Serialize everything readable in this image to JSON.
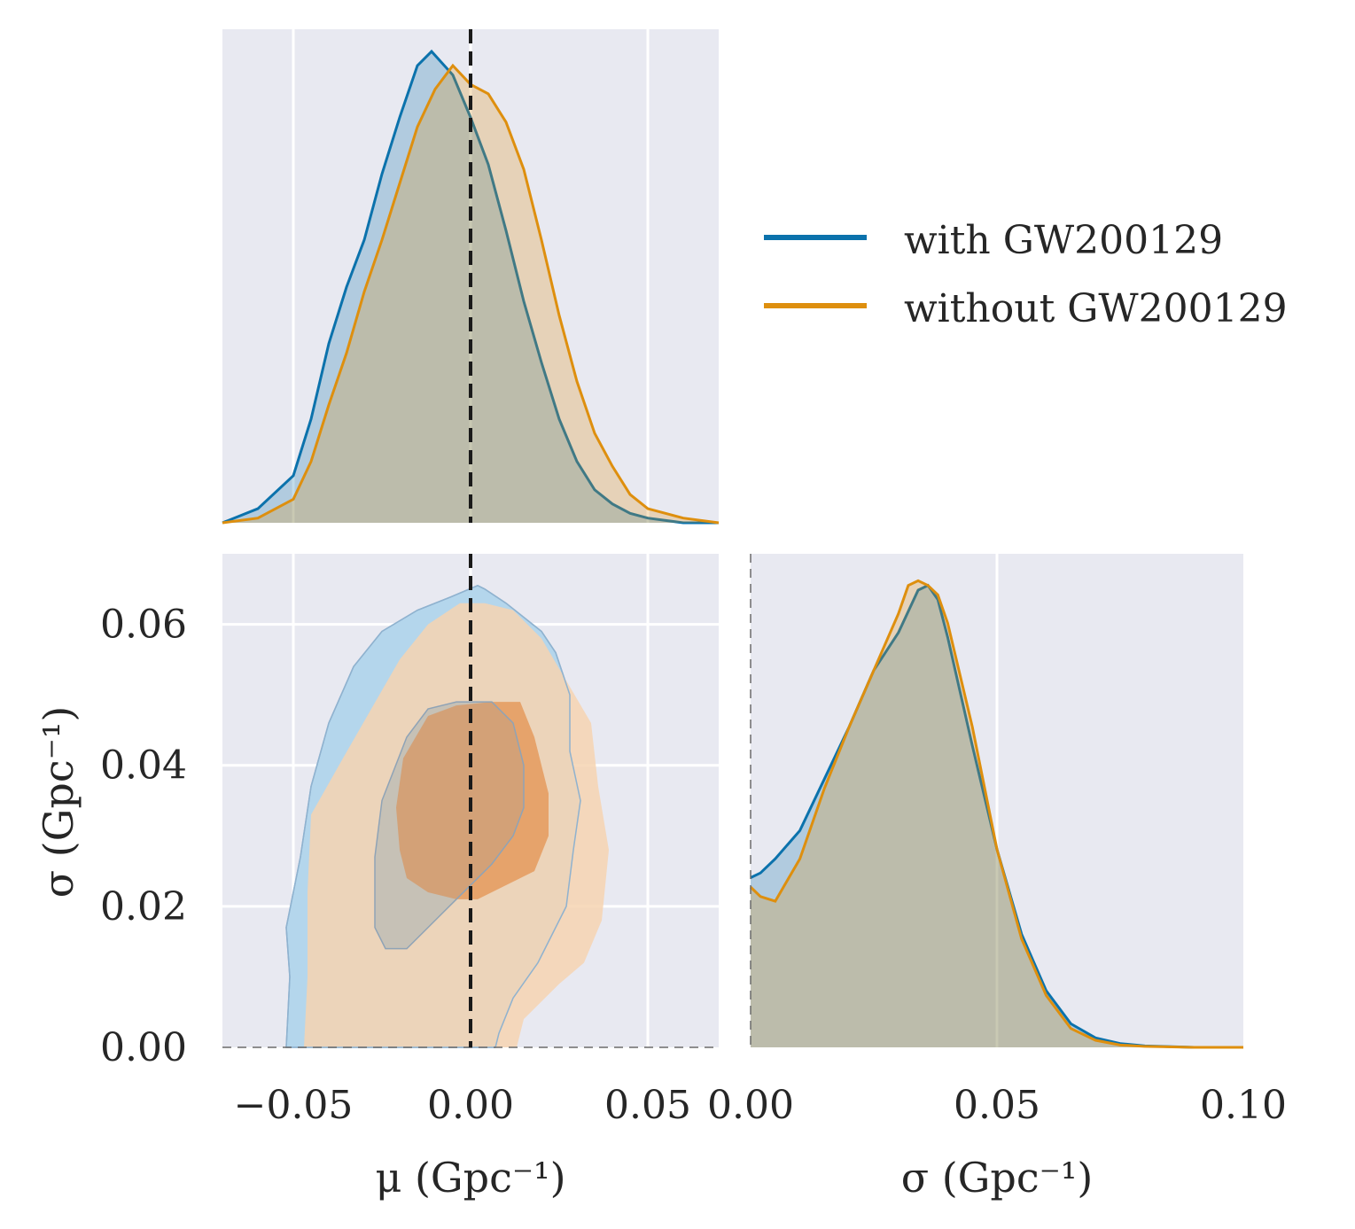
{
  "chart_data": {
    "type": "corner",
    "colors": {
      "with": "#0b72ac",
      "without": "#de8f0e",
      "reference": "#1a1a1a",
      "panel_bg": "#e8e9f1"
    },
    "series": [
      {
        "name": "with GW200129",
        "key": "with"
      },
      {
        "name": "without GW200129",
        "key": "without"
      }
    ],
    "legend": {
      "placement": "upper-right"
    },
    "reference_line": {
      "mu": 0.0,
      "style": "dashed"
    },
    "panels": {
      "mu_marginal": {
        "xlim": [
          -0.07,
          0.07
        ],
        "xticks": [
          -0.05,
          0.0,
          0.05
        ],
        "with": {
          "x": [
            -0.07,
            -0.06,
            -0.05,
            -0.045,
            -0.04,
            -0.035,
            -0.03,
            -0.025,
            -0.02,
            -0.015,
            -0.011,
            -0.005,
            0.0,
            0.005,
            0.01,
            0.015,
            0.02,
            0.025,
            0.03,
            0.035,
            0.04,
            0.045,
            0.05,
            0.06,
            0.07
          ],
          "y": [
            0.0,
            0.03,
            0.1,
            0.22,
            0.38,
            0.5,
            0.6,
            0.74,
            0.86,
            0.97,
            1.0,
            0.95,
            0.86,
            0.76,
            0.62,
            0.47,
            0.34,
            0.22,
            0.13,
            0.07,
            0.04,
            0.02,
            0.01,
            0.0,
            0.0
          ]
        },
        "without": {
          "x": [
            -0.07,
            -0.06,
            -0.05,
            -0.045,
            -0.04,
            -0.035,
            -0.03,
            -0.025,
            -0.02,
            -0.015,
            -0.01,
            -0.005,
            0.0,
            0.005,
            0.01,
            0.015,
            0.02,
            0.025,
            0.03,
            0.035,
            0.04,
            0.045,
            0.05,
            0.06,
            0.07
          ],
          "y": [
            0.0,
            0.01,
            0.05,
            0.13,
            0.25,
            0.36,
            0.49,
            0.6,
            0.72,
            0.84,
            0.92,
            0.97,
            0.93,
            0.91,
            0.85,
            0.75,
            0.6,
            0.44,
            0.3,
            0.19,
            0.12,
            0.06,
            0.03,
            0.01,
            0.0
          ]
        }
      },
      "joint": {
        "xlim": [
          -0.07,
          0.07
        ],
        "ylim": [
          0.0,
          0.07
        ],
        "xticks": [
          -0.05,
          0.0,
          0.05
        ],
        "yticks": [
          0.0,
          0.02,
          0.04,
          0.06
        ],
        "xlabel": "μ (Gpc⁻¹)",
        "ylabel": "σ (Gpc⁻¹)",
        "with_outer": [
          [
            -0.052,
            0.0
          ],
          [
            -0.051,
            0.01
          ],
          [
            -0.052,
            0.017
          ],
          [
            -0.048,
            0.027
          ],
          [
            -0.045,
            0.037
          ],
          [
            -0.04,
            0.046
          ],
          [
            -0.033,
            0.054
          ],
          [
            -0.025,
            0.059
          ],
          [
            -0.015,
            0.062
          ],
          [
            -0.005,
            0.064
          ],
          [
            0.002,
            0.0655
          ],
          [
            0.004,
            0.065
          ],
          [
            0.01,
            0.063
          ],
          [
            0.02,
            0.059
          ],
          [
            0.024,
            0.056
          ],
          [
            0.028,
            0.05
          ],
          [
            0.028,
            0.042
          ],
          [
            0.031,
            0.035
          ],
          [
            0.029,
            0.028
          ],
          [
            0.027,
            0.02
          ],
          [
            0.019,
            0.012
          ],
          [
            0.012,
            0.007
          ],
          [
            0.008,
            0.002
          ],
          [
            0.007,
            0.0
          ],
          [
            -0.052,
            0.0
          ]
        ],
        "with_inner": [
          [
            -0.027,
            0.02
          ],
          [
            -0.027,
            0.027
          ],
          [
            -0.025,
            0.035
          ],
          [
            -0.018,
            0.044
          ],
          [
            -0.012,
            0.048
          ],
          [
            -0.004,
            0.049
          ],
          [
            0.006,
            0.049
          ],
          [
            0.012,
            0.046
          ],
          [
            0.015,
            0.04
          ],
          [
            0.015,
            0.034
          ],
          [
            0.012,
            0.03
          ],
          [
            0.006,
            0.026
          ],
          [
            -0.002,
            0.022
          ],
          [
            -0.01,
            0.018
          ],
          [
            -0.018,
            0.014
          ],
          [
            -0.024,
            0.014
          ],
          [
            -0.027,
            0.017
          ],
          [
            -0.027,
            0.02
          ]
        ],
        "without_outer": [
          [
            -0.047,
            0.0
          ],
          [
            -0.046,
            0.01
          ],
          [
            -0.046,
            0.022
          ],
          [
            -0.045,
            0.033
          ],
          [
            -0.036,
            0.041
          ],
          [
            -0.028,
            0.048
          ],
          [
            -0.02,
            0.055
          ],
          [
            -0.012,
            0.06
          ],
          [
            -0.003,
            0.063
          ],
          [
            0.004,
            0.063
          ],
          [
            0.012,
            0.062
          ],
          [
            0.02,
            0.058
          ],
          [
            0.027,
            0.052
          ],
          [
            0.034,
            0.046
          ],
          [
            0.036,
            0.037
          ],
          [
            0.039,
            0.028
          ],
          [
            0.037,
            0.018
          ],
          [
            0.032,
            0.012
          ],
          [
            0.025,
            0.009
          ],
          [
            0.015,
            0.004
          ],
          [
            0.013,
            0.0
          ],
          [
            -0.047,
            0.0
          ]
        ],
        "without_inner": [
          [
            -0.02,
            0.028
          ],
          [
            -0.021,
            0.034
          ],
          [
            -0.019,
            0.041
          ],
          [
            -0.012,
            0.047
          ],
          [
            -0.004,
            0.0485
          ],
          [
            0.006,
            0.049
          ],
          [
            0.014,
            0.049
          ],
          [
            0.018,
            0.044
          ],
          [
            0.022,
            0.036
          ],
          [
            0.022,
            0.03
          ],
          [
            0.018,
            0.025
          ],
          [
            0.01,
            0.023
          ],
          [
            0.002,
            0.021
          ],
          [
            -0.004,
            0.021
          ],
          [
            -0.012,
            0.022
          ],
          [
            -0.018,
            0.024
          ],
          [
            -0.02,
            0.028
          ]
        ]
      },
      "sigma_marginal": {
        "xlim": [
          0.0,
          0.1
        ],
        "xticks": [
          0.0,
          0.05,
          0.1
        ],
        "xlabel": "σ (Gpc⁻¹)",
        "with": {
          "x": [
            0.0,
            0.002,
            0.005,
            0.01,
            0.015,
            0.02,
            0.025,
            0.03,
            0.034,
            0.036,
            0.038,
            0.04,
            0.045,
            0.05,
            0.055,
            0.06,
            0.065,
            0.07,
            0.075,
            0.08,
            0.09,
            0.1
          ],
          "y": [
            0.36,
            0.37,
            0.4,
            0.46,
            0.57,
            0.68,
            0.8,
            0.88,
            0.97,
            0.98,
            0.95,
            0.87,
            0.64,
            0.42,
            0.24,
            0.12,
            0.05,
            0.02,
            0.008,
            0.003,
            0.0,
            0.0
          ]
        },
        "without": {
          "x": [
            0.0,
            0.002,
            0.005,
            0.01,
            0.015,
            0.02,
            0.025,
            0.03,
            0.032,
            0.034,
            0.036,
            0.038,
            0.04,
            0.045,
            0.05,
            0.055,
            0.06,
            0.065,
            0.07,
            0.075,
            0.08,
            0.09,
            0.1
          ],
          "y": [
            0.34,
            0.32,
            0.31,
            0.4,
            0.55,
            0.68,
            0.8,
            0.92,
            0.98,
            0.99,
            0.98,
            0.96,
            0.9,
            0.68,
            0.42,
            0.23,
            0.11,
            0.04,
            0.015,
            0.005,
            0.002,
            0.0,
            0.0
          ]
        }
      }
    }
  }
}
